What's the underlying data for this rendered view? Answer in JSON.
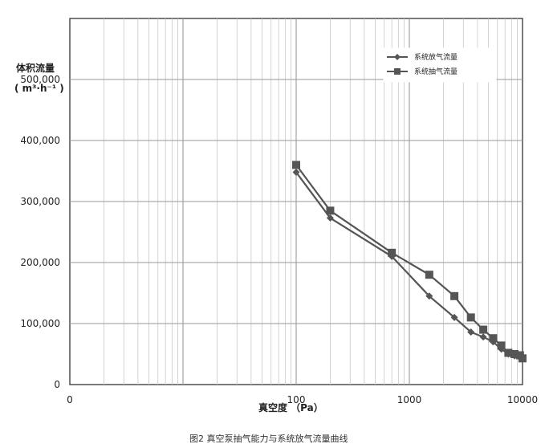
{
  "chart_data": {
    "type": "line",
    "x_scale": "log",
    "xlim": [
      1,
      10000
    ],
    "ylim": [
      0,
      600000
    ],
    "x_tick_labels": [
      "0",
      "100",
      "1000",
      "10000"
    ],
    "y_tick_labels": [
      "0",
      "100,000",
      "200,000",
      "300,000",
      "400,000",
      "500,000"
    ],
    "ylabel_line1": "体积流量",
    "ylabel_line2": "( m³·h⁻¹ )",
    "xlabel": "真空度 （Pa）",
    "caption": "图2 真空泵抽气能力与系统放气流量曲线",
    "grid": true,
    "legend_position": "top-right",
    "series": [
      {
        "name": "系统放气流量",
        "marker": "diamond",
        "color": "#555555",
        "x": [
          100,
          200,
          700,
          1500,
          2500,
          3500,
          4500,
          5500,
          6500,
          7500,
          8500,
          9500,
          10000
        ],
        "y": [
          348000,
          273000,
          210000,
          145000,
          110000,
          86000,
          78000,
          70000,
          58000,
          50000,
          47000,
          44000,
          42000
        ]
      },
      {
        "name": "系统抽气流量",
        "marker": "square",
        "color": "#555555",
        "x": [
          100,
          200,
          700,
          1500,
          2500,
          3500,
          4500,
          5500,
          6500,
          7500,
          8500,
          9500,
          10000
        ],
        "y": [
          360000,
          285000,
          216000,
          180000,
          145000,
          110000,
          90000,
          76000,
          64000,
          52000,
          50000,
          48000,
          43000
        ]
      }
    ]
  }
}
